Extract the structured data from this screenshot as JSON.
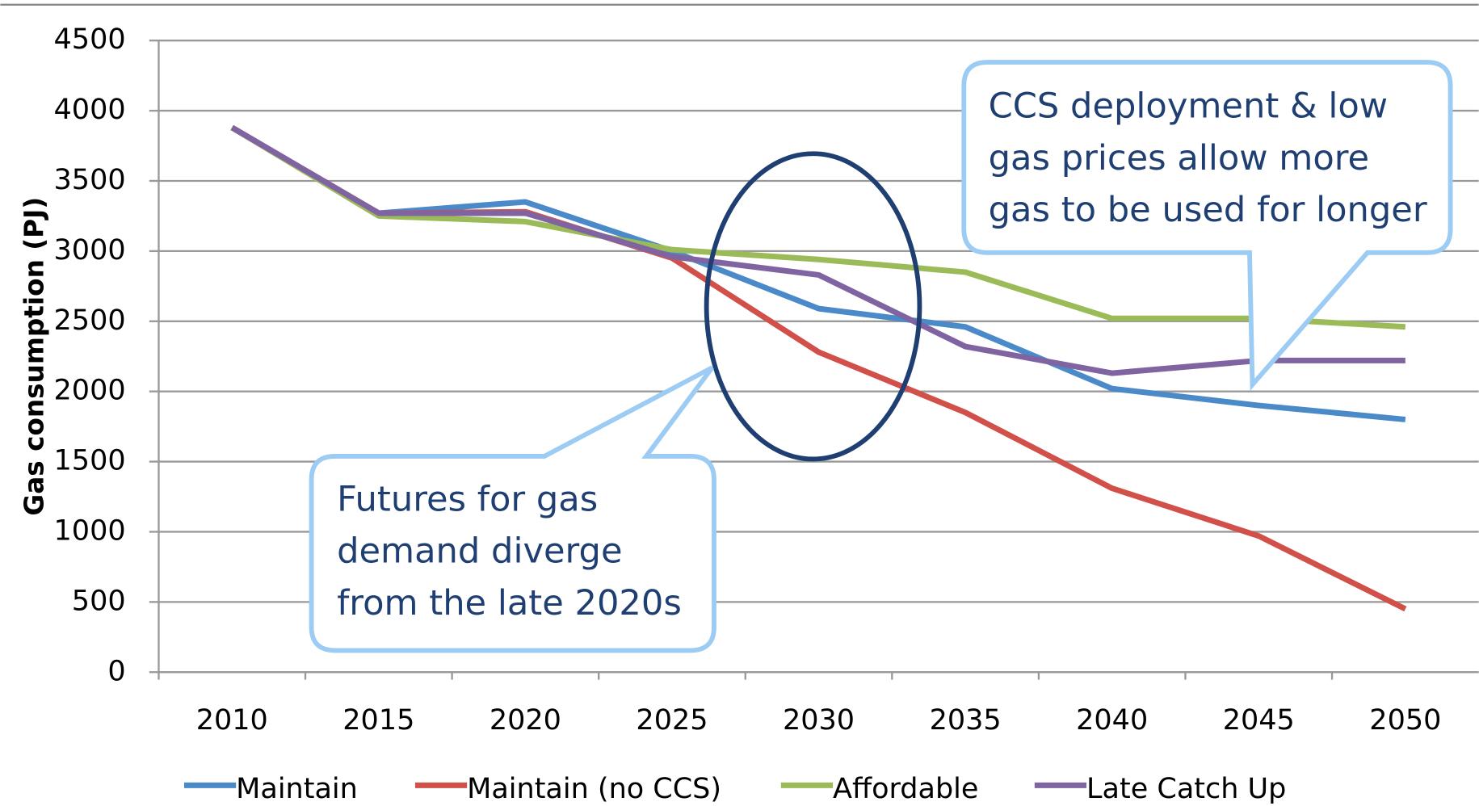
{
  "chart_data": {
    "type": "line",
    "y_label": "Gas consumption (PJ)",
    "categories": [
      "2010",
      "2015",
      "2020",
      "2025",
      "2030",
      "2035",
      "2040",
      "2045",
      "2050"
    ],
    "series": [
      {
        "name": "Maintain",
        "color": "#4a8ac9",
        "values": [
          3880,
          3270,
          3350,
          3000,
          2590,
          2460,
          2020,
          1900,
          1800
        ]
      },
      {
        "name": "Maintain (no CCS)",
        "color": "#d2504a",
        "values": [
          3880,
          3270,
          3280,
          2950,
          2280,
          1850,
          1310,
          970,
          450
        ]
      },
      {
        "name": "Affordable",
        "color": "#9bbb59",
        "values": [
          3880,
          3250,
          3210,
          3010,
          2940,
          2850,
          2520,
          2520,
          2460
        ]
      },
      {
        "name": "Late Catch Up",
        "color": "#8064a2",
        "values": [
          3880,
          3270,
          3270,
          2960,
          2830,
          2320,
          2130,
          2220,
          2220
        ]
      }
    ],
    "ylim": [
      0,
      4500
    ],
    "yticks": [
      0,
      500,
      1000,
      1500,
      2000,
      2500,
      3000,
      3500,
      4000,
      4500
    ],
    "grid": true,
    "legend": "bottom",
    "annotations": [
      [
        "CCS deployment & low",
        "gas prices allow more",
        "gas to be used for longer"
      ],
      [
        "Futures for gas",
        "demand diverge",
        "from the late 2020s"
      ]
    ]
  }
}
